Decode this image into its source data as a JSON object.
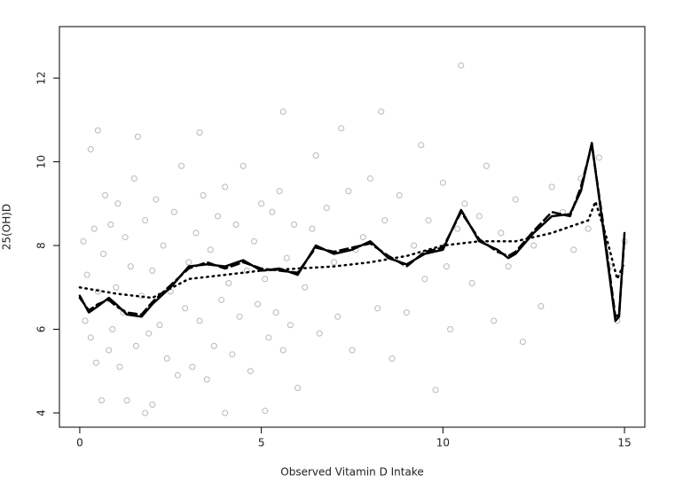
{
  "chart_data": {
    "type": "scatter",
    "x_label": "Observed Vitamin D Intake",
    "y_label": "25(OH)D",
    "xlim": [
      -0.56,
      15.56
    ],
    "ylim": [
      3.66,
      13.23
    ],
    "xticks": [
      0,
      5,
      10,
      15
    ],
    "yticks": [
      4,
      6,
      8,
      10,
      12
    ],
    "series": [
      {
        "style": "points",
        "color": "#b8b8b8",
        "x": [
          0.1,
          0.15,
          0.2,
          0.3,
          0.3,
          0.4,
          0.45,
          0.5,
          0.5,
          0.6,
          0.65,
          0.7,
          0.8,
          0.85,
          0.9,
          1.0,
          1.05,
          1.1,
          1.2,
          1.25,
          1.3,
          1.4,
          1.5,
          1.55,
          1.6,
          1.7,
          1.8,
          1.8,
          1.9,
          2.0,
          2.0,
          2.1,
          2.2,
          2.3,
          2.4,
          2.5,
          2.6,
          2.7,
          2.8,
          2.9,
          3.0,
          3.1,
          3.2,
          3.3,
          3.3,
          3.4,
          3.5,
          3.6,
          3.7,
          3.8,
          3.9,
          4.0,
          4.0,
          4.1,
          4.2,
          4.3,
          4.4,
          4.5,
          4.6,
          4.7,
          4.8,
          4.9,
          5.0,
          5.1,
          5.1,
          5.2,
          5.3,
          5.4,
          5.5,
          5.6,
          5.6,
          5.7,
          5.8,
          5.9,
          6.0,
          6.2,
          6.4,
          6.5,
          6.6,
          6.8,
          7.0,
          7.1,
          7.2,
          7.4,
          7.5,
          7.6,
          7.8,
          8.0,
          8.2,
          8.3,
          8.4,
          8.6,
          8.8,
          9.0,
          9.2,
          9.4,
          9.5,
          9.6,
          9.8,
          10.0,
          10.1,
          10.2,
          10.4,
          10.5,
          10.6,
          10.8,
          11.0,
          11.2,
          11.4,
          11.6,
          11.8,
          12.0,
          12.2,
          12.5,
          12.7,
          13.0,
          13.3,
          13.6,
          13.8,
          14.0,
          14.3,
          14.6,
          14.8,
          15.0
        ],
        "values": [
          8.1,
          6.2,
          7.3,
          10.3,
          5.8,
          8.4,
          5.2,
          10.75,
          6.9,
          4.3,
          7.8,
          9.2,
          5.5,
          8.5,
          6.0,
          7.0,
          9.0,
          5.1,
          6.4,
          8.2,
          4.3,
          7.5,
          9.6,
          5.6,
          10.6,
          6.8,
          4.0,
          8.6,
          5.9,
          4.2,
          7.4,
          9.1,
          6.1,
          8.0,
          5.3,
          6.9,
          8.8,
          4.9,
          9.9,
          6.5,
          7.6,
          5.1,
          8.3,
          10.7,
          6.2,
          9.2,
          4.8,
          7.9,
          5.6,
          8.7,
          6.7,
          4.0,
          9.4,
          7.1,
          5.4,
          8.5,
          6.3,
          9.9,
          7.4,
          5.0,
          8.1,
          6.6,
          9.0,
          4.05,
          7.2,
          5.8,
          8.8,
          6.4,
          9.3,
          11.2,
          5.5,
          7.7,
          6.1,
          8.5,
          4.6,
          7.0,
          8.4,
          10.15,
          5.9,
          8.9,
          7.6,
          6.3,
          10.8,
          9.3,
          5.5,
          7.9,
          8.2,
          9.6,
          6.5,
          11.2,
          8.6,
          5.3,
          9.2,
          6.4,
          8.0,
          10.4,
          7.2,
          8.6,
          4.55,
          9.5,
          7.5,
          6.0,
          8.4,
          12.3,
          9.0,
          7.1,
          8.7,
          9.9,
          6.2,
          8.3,
          7.5,
          9.1,
          5.7,
          8.0,
          6.55,
          9.4,
          8.8,
          7.9,
          9.6,
          8.4,
          10.1,
          7.5,
          6.2,
          8.1
        ]
      },
      {
        "style": "solid",
        "color": "#000000",
        "x": [
          0,
          0.25,
          0.5,
          0.8,
          1.0,
          1.3,
          1.7,
          2.0,
          2.5,
          3.0,
          3.5,
          4.0,
          4.5,
          5.0,
          5.5,
          6.0,
          6.5,
          7.0,
          7.5,
          8.0,
          8.5,
          9.0,
          9.5,
          10.0,
          10.5,
          11.0,
          11.5,
          11.8,
          12.0,
          12.5,
          13.0,
          13.5,
          13.8,
          14.1,
          14.4,
          14.75,
          14.85,
          15.0
        ],
        "values": [
          6.8,
          6.4,
          6.55,
          6.75,
          6.6,
          6.35,
          6.3,
          6.6,
          7.0,
          7.5,
          7.55,
          7.5,
          7.65,
          7.4,
          7.45,
          7.3,
          8.0,
          7.8,
          7.9,
          8.1,
          7.7,
          7.55,
          7.8,
          7.9,
          8.85,
          8.1,
          7.9,
          7.7,
          7.8,
          8.3,
          8.7,
          8.75,
          9.3,
          10.45,
          8.5,
          6.2,
          6.3,
          8.3
        ]
      },
      {
        "style": "dashed",
        "color": "#000000",
        "x": [
          0,
          0.25,
          0.5,
          0.8,
          1.0,
          1.3,
          1.7,
          2.0,
          2.5,
          3.0,
          3.5,
          4.0,
          4.5,
          5.0,
          5.5,
          6.0,
          6.5,
          7.0,
          7.5,
          8.0,
          8.5,
          9.0,
          9.5,
          10.0,
          10.5,
          11.0,
          11.5,
          11.8,
          12.0,
          12.5,
          13.0,
          13.5,
          13.8,
          14.1,
          14.4,
          14.75,
          14.85,
          15.0
        ],
        "values": [
          6.75,
          6.45,
          6.6,
          6.7,
          6.55,
          6.4,
          6.35,
          6.65,
          7.05,
          7.45,
          7.6,
          7.45,
          7.6,
          7.45,
          7.4,
          7.35,
          7.95,
          7.85,
          7.95,
          8.05,
          7.75,
          7.5,
          7.85,
          7.95,
          8.8,
          8.15,
          7.85,
          7.75,
          7.85,
          8.35,
          8.8,
          8.7,
          9.4,
          10.4,
          8.6,
          6.3,
          6.35,
          8.2
        ]
      },
      {
        "style": "dotted",
        "color": "#000000",
        "x": [
          0,
          1,
          2,
          3,
          4,
          5,
          6,
          7,
          8,
          9,
          10,
          11,
          12,
          13,
          14,
          14.2,
          14.5,
          14.8,
          15
        ],
        "values": [
          7.0,
          6.85,
          6.75,
          7.2,
          7.3,
          7.4,
          7.45,
          7.5,
          7.6,
          7.75,
          8.0,
          8.1,
          8.1,
          8.3,
          8.6,
          9.05,
          8.2,
          7.2,
          7.6
        ]
      }
    ]
  }
}
